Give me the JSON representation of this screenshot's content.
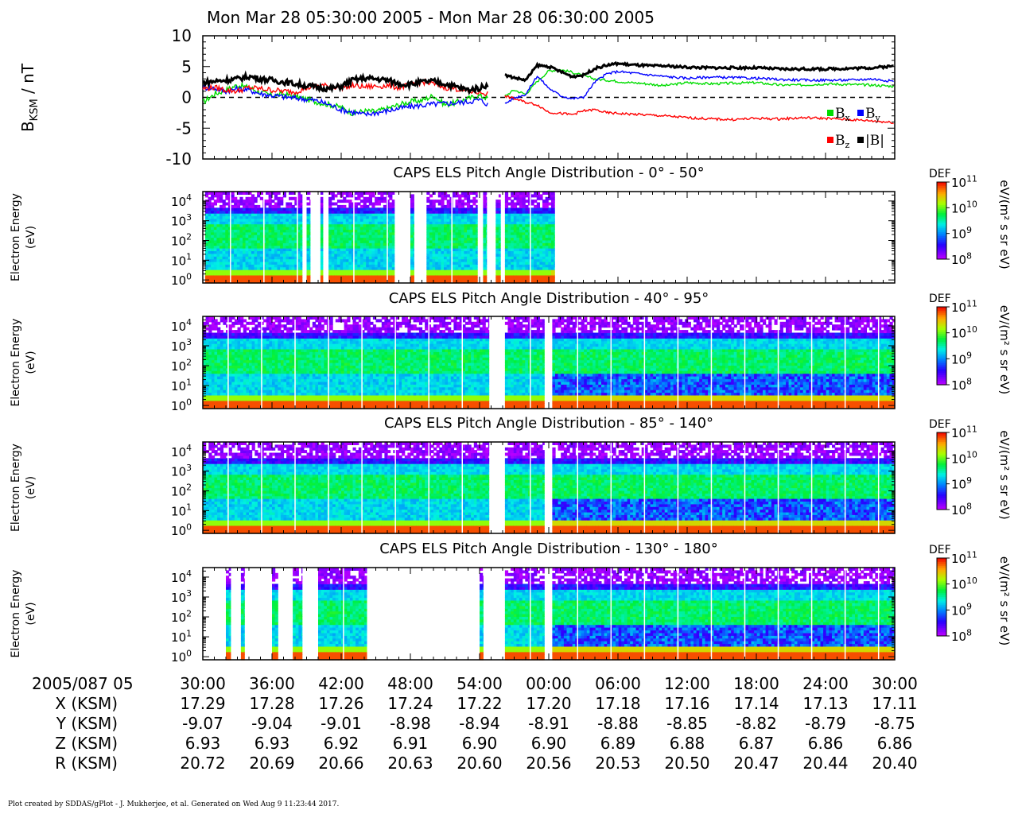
{
  "title": "Mon Mar 28 05:30:00 2005 - Mon Mar 28 06:30:00 2005",
  "footer": "Plot created by SDDAS/gPlot - J. Mukherjee, et al.  Generated on Wed Aug 9 11:23:44 2017.",
  "colors": {
    "bx": "#00dd00",
    "by": "#0000ff",
    "bz": "#ff0000",
    "bmag": "#000000",
    "zero_line": "#000000"
  },
  "chart_data": [
    {
      "type": "line",
      "id": "magnetometer",
      "ylabel_main": "B",
      "ylabel_sub": "KSM",
      "ylabel_unit": " / nT",
      "ylim": [
        -10,
        10
      ],
      "yticks": [
        {
          "value": 10,
          "label": "10"
        },
        {
          "value": 5,
          "label": "5"
        },
        {
          "value": 0,
          "label": "0"
        },
        {
          "value": -5,
          "label": "-5"
        },
        {
          "value": -10,
          "label": "-10"
        }
      ],
      "x_unit": "minutes after 05:30",
      "xlim": [
        0,
        60
      ],
      "gap": [
        24.8,
        26.2
      ],
      "legend": [
        {
          "key": "bx",
          "main": "B",
          "sub": "x"
        },
        {
          "key": "by",
          "main": "B",
          "sub": "y"
        },
        {
          "key": "bz",
          "main": "B",
          "sub": "z"
        },
        {
          "key": "bmag",
          "main": "|B|",
          "sub": ""
        }
      ],
      "series": [
        {
          "key": "bx",
          "x": [
            0,
            1,
            2,
            3,
            4,
            5,
            6,
            7,
            8,
            9,
            10,
            11,
            12,
            13,
            14,
            15,
            16,
            17,
            18,
            19,
            20,
            21,
            22,
            23,
            24,
            24.8,
            26.2,
            27,
            28,
            29,
            30,
            31,
            32,
            33,
            34,
            35,
            36,
            37,
            38,
            39,
            40,
            42,
            44,
            46,
            48,
            50,
            52,
            54,
            56,
            58,
            60
          ],
          "y": [
            -0.8,
            0.5,
            1.2,
            2,
            1.6,
            0.8,
            0.3,
            0.5,
            0.2,
            -0.3,
            -0.8,
            -1.2,
            -1.6,
            -2.6,
            -2.2,
            -2.3,
            -1.8,
            -1.2,
            -0.7,
            -0.5,
            0.3,
            -1.2,
            -0.8,
            -0.2,
            0.3,
            -0.2,
            0.2,
            1.2,
            0.5,
            2.6,
            4.3,
            4.5,
            4.1,
            3.5,
            3.0,
            2.8,
            2.6,
            2.4,
            2.3,
            2.1,
            1.9,
            2.4,
            2.2,
            2.3,
            2.4,
            2.0,
            2.0,
            2.2,
            2.1,
            2.0,
            1.8
          ]
        },
        {
          "key": "by",
          "x": [
            0,
            1,
            2,
            3,
            4,
            5,
            6,
            7,
            8,
            9,
            10,
            11,
            12,
            13,
            14,
            15,
            16,
            17,
            18,
            19,
            20,
            21,
            22,
            23,
            24,
            24.8,
            26.2,
            27,
            28,
            29,
            30,
            31,
            32,
            33,
            34,
            35,
            36,
            37,
            38,
            39,
            40,
            42,
            44,
            46,
            48,
            50,
            52,
            54,
            56,
            58,
            60
          ],
          "y": [
            1.6,
            1.5,
            1.0,
            1.4,
            1.2,
            0.6,
            0.3,
            0.1,
            -0.1,
            -0.3,
            -0.6,
            -1.2,
            -2.0,
            -2.4,
            -2.8,
            -2.5,
            -2.2,
            -1.8,
            -1.5,
            -1.3,
            -1.1,
            -1.0,
            -0.9,
            -0.7,
            -0.4,
            -1.2,
            -1.0,
            -0.1,
            0.5,
            3.5,
            1.5,
            0.3,
            -0.2,
            0.0,
            2.5,
            3.8,
            4.2,
            4.0,
            3.8,
            3.6,
            3.4,
            3.1,
            3.3,
            3.2,
            3.1,
            2.9,
            2.8,
            2.8,
            2.8,
            3.0,
            2.6
          ]
        },
        {
          "key": "bz",
          "x": [
            0,
            1,
            2,
            3,
            4,
            5,
            6,
            7,
            8,
            9,
            10,
            11,
            12,
            13,
            14,
            15,
            16,
            17,
            18,
            19,
            20,
            21,
            22,
            23,
            24,
            24.8,
            26.2,
            27,
            28,
            29,
            30,
            31,
            32,
            33,
            34,
            35,
            36,
            37,
            38,
            39,
            40,
            42,
            44,
            46,
            48,
            50,
            52,
            54,
            56,
            58,
            60
          ],
          "y": [
            1.4,
            1.6,
            1.2,
            1.0,
            1.6,
            1.4,
            1.2,
            1.0,
            0.9,
            1.5,
            2.0,
            1.8,
            1.6,
            1.9,
            1.7,
            1.8,
            1.9,
            1.6,
            2.0,
            2.5,
            2.2,
            1.6,
            1.4,
            1.0,
            0.8,
            0.6,
            0.2,
            -0.2,
            -0.8,
            -1.2,
            -2.4,
            -2.6,
            -2.8,
            -2.2,
            -2.0,
            -2.5,
            -2.6,
            -2.7,
            -2.8,
            -2.9,
            -3.0,
            -3.3,
            -3.5,
            -3.6,
            -3.4,
            -3.5,
            -3.3,
            -3.4,
            -3.6,
            -3.8,
            -4.1
          ]
        },
        {
          "key": "bmag",
          "x": [
            0,
            1,
            2,
            3,
            4,
            5,
            6,
            7,
            8,
            9,
            10,
            11,
            12,
            13,
            14,
            15,
            16,
            17,
            18,
            19,
            20,
            21,
            22,
            23,
            24,
            24.8,
            26.2,
            27,
            28,
            29,
            30,
            31,
            32,
            33,
            34,
            35,
            36,
            37,
            38,
            39,
            40,
            42,
            44,
            46,
            48,
            50,
            52,
            54,
            56,
            58,
            60
          ],
          "y": [
            2.4,
            2.6,
            2.8,
            3.0,
            3.4,
            3.0,
            2.8,
            2.5,
            2.2,
            1.9,
            1.6,
            1.4,
            1.8,
            2.8,
            3.1,
            3.0,
            2.8,
            2.2,
            2.1,
            2.5,
            2.6,
            2.2,
            1.7,
            1.2,
            1.5,
            2.2,
            3.6,
            3.2,
            2.8,
            5.2,
            5.0,
            4.2,
            3.4,
            3.6,
            4.7,
            5.2,
            5.5,
            5.3,
            5.2,
            5.1,
            5.1,
            4.9,
            4.8,
            4.8,
            4.8,
            4.6,
            4.6,
            4.6,
            4.7,
            4.8,
            5.1
          ]
        }
      ]
    },
    {
      "type": "heatmap",
      "id": "els-pad-1",
      "title": "CAPS ELS Pitch Angle Distribution - 0° - 50°",
      "ylabel": "Electron Energy",
      "yunit": "(eV)",
      "yticks": [
        {
          "value": 1,
          "base": "10",
          "exp": "0"
        },
        {
          "value": 10,
          "base": "10",
          "exp": "1"
        },
        {
          "value": 100,
          "base": "10",
          "exp": "2"
        },
        {
          "value": 1000,
          "base": "10",
          "exp": "3"
        },
        {
          "value": 10000,
          "base": "10",
          "exp": "4"
        }
      ],
      "ylim": [
        0.7,
        30000
      ],
      "coverage_minutes": [
        [
          0.2,
          8.6
        ],
        [
          9.0,
          9.3
        ],
        [
          10.2,
          10.4
        ],
        [
          10.9,
          16.6
        ],
        [
          18.0,
          18.3
        ],
        [
          19.4,
          23.8
        ],
        [
          24.3,
          24.6
        ],
        [
          25.4,
          25.8
        ],
        [
          26.2,
          30.5
        ]
      ],
      "colorbar": {
        "label": "DEF",
        "unit": "eV/(m² s sr eV)",
        "min_exp": 8,
        "max_exp": 11,
        "ticks": [
          {
            "base": "10",
            "exp": "11"
          },
          {
            "base": "10",
            "exp": "10"
          },
          {
            "base": "10",
            "exp": "9"
          },
          {
            "base": "10",
            "exp": "8"
          }
        ]
      }
    },
    {
      "type": "heatmap",
      "id": "els-pad-2",
      "title": "CAPS ELS Pitch Angle Distribution - 40° - 95°",
      "ylabel": "Electron Energy",
      "yunit": "(eV)",
      "yticks": [
        {
          "value": 1,
          "base": "10",
          "exp": "0"
        },
        {
          "value": 10,
          "base": "10",
          "exp": "1"
        },
        {
          "value": 100,
          "base": "10",
          "exp": "2"
        },
        {
          "value": 1000,
          "base": "10",
          "exp": "3"
        },
        {
          "value": 10000,
          "base": "10",
          "exp": "4"
        }
      ],
      "ylim": [
        0.7,
        30000
      ],
      "coverage_minutes": [
        [
          0.0,
          24.8
        ],
        [
          26.2,
          29.6
        ],
        [
          30.3,
          60.0
        ]
      ],
      "colorbar": {
        "label": "DEF",
        "unit": "eV/(m² s sr eV)",
        "min_exp": 8,
        "max_exp": 11,
        "ticks": [
          {
            "base": "10",
            "exp": "11"
          },
          {
            "base": "10",
            "exp": "10"
          },
          {
            "base": "10",
            "exp": "9"
          },
          {
            "base": "10",
            "exp": "8"
          }
        ]
      }
    },
    {
      "type": "heatmap",
      "id": "els-pad-3",
      "title": "CAPS ELS Pitch Angle Distribution - 85° - 140°",
      "ylabel": "Electron Energy",
      "yunit": "(eV)",
      "yticks": [
        {
          "value": 1,
          "base": "10",
          "exp": "0"
        },
        {
          "value": 10,
          "base": "10",
          "exp": "1"
        },
        {
          "value": 100,
          "base": "10",
          "exp": "2"
        },
        {
          "value": 1000,
          "base": "10",
          "exp": "3"
        },
        {
          "value": 10000,
          "base": "10",
          "exp": "4"
        }
      ],
      "ylim": [
        0.7,
        30000
      ],
      "coverage_minutes": [
        [
          0.0,
          24.8
        ],
        [
          26.2,
          29.6
        ],
        [
          30.3,
          60.0
        ]
      ],
      "colorbar": {
        "label": "DEF",
        "unit": "eV/(m² s sr eV)",
        "min_exp": 8,
        "max_exp": 11,
        "ticks": [
          {
            "base": "10",
            "exp": "11"
          },
          {
            "base": "10",
            "exp": "10"
          },
          {
            "base": "10",
            "exp": "9"
          },
          {
            "base": "10",
            "exp": "8"
          }
        ]
      }
    },
    {
      "type": "heatmap",
      "id": "els-pad-4",
      "title": "CAPS ELS Pitch Angle Distribution - 130° - 180°",
      "ylabel": "Electron Energy",
      "yunit": "(eV)",
      "yticks": [
        {
          "value": 1,
          "base": "10",
          "exp": "0"
        },
        {
          "value": 10,
          "base": "10",
          "exp": "1"
        },
        {
          "value": 100,
          "base": "10",
          "exp": "2"
        },
        {
          "value": 1000,
          "base": "10",
          "exp": "3"
        },
        {
          "value": 10000,
          "base": "10",
          "exp": "4"
        }
      ],
      "ylim": [
        0.7,
        30000
      ],
      "coverage_minutes": [
        [
          2.0,
          2.4
        ],
        [
          3.3,
          3.6
        ],
        [
          6.0,
          6.5
        ],
        [
          7.8,
          8.6
        ],
        [
          10.0,
          14.2
        ],
        [
          24.0,
          24.3
        ],
        [
          26.2,
          29.6
        ],
        [
          30.3,
          60.0
        ]
      ],
      "colorbar": {
        "label": "DEF",
        "unit": "eV/(m² s sr eV)",
        "min_exp": 8,
        "max_exp": 11,
        "ticks": [
          {
            "base": "10",
            "exp": "11"
          },
          {
            "base": "10",
            "exp": "10"
          },
          {
            "base": "10",
            "exp": "9"
          },
          {
            "base": "10",
            "exp": "8"
          }
        ]
      }
    }
  ],
  "x_axis": {
    "start_label": "2005/087 05",
    "ticks": [
      "30:00",
      "36:00",
      "42:00",
      "48:00",
      "54:00",
      "00:00",
      "06:00",
      "12:00",
      "18:00",
      "24:00",
      "30:00"
    ],
    "ephemeris": [
      {
        "label": "X (KSM)",
        "values": [
          "17.29",
          "17.28",
          "17.26",
          "17.24",
          "17.22",
          "17.20",
          "17.18",
          "17.16",
          "17.14",
          "17.13",
          "17.11"
        ]
      },
      {
        "label": "Y (KSM)",
        "values": [
          "-9.07",
          "-9.04",
          "-9.01",
          "-8.98",
          "-8.94",
          "-8.91",
          "-8.88",
          "-8.85",
          "-8.82",
          "-8.79",
          "-8.75"
        ]
      },
      {
        "label": "Z (KSM)",
        "values": [
          "6.93",
          "6.93",
          "6.92",
          "6.91",
          "6.90",
          "6.90",
          "6.89",
          "6.88",
          "6.87",
          "6.86",
          "6.86"
        ]
      },
      {
        "label": "R (KSM)",
        "values": [
          "20.72",
          "20.69",
          "20.66",
          "20.63",
          "20.60",
          "20.56",
          "20.53",
          "20.50",
          "20.47",
          "20.44",
          "20.40"
        ]
      }
    ]
  }
}
